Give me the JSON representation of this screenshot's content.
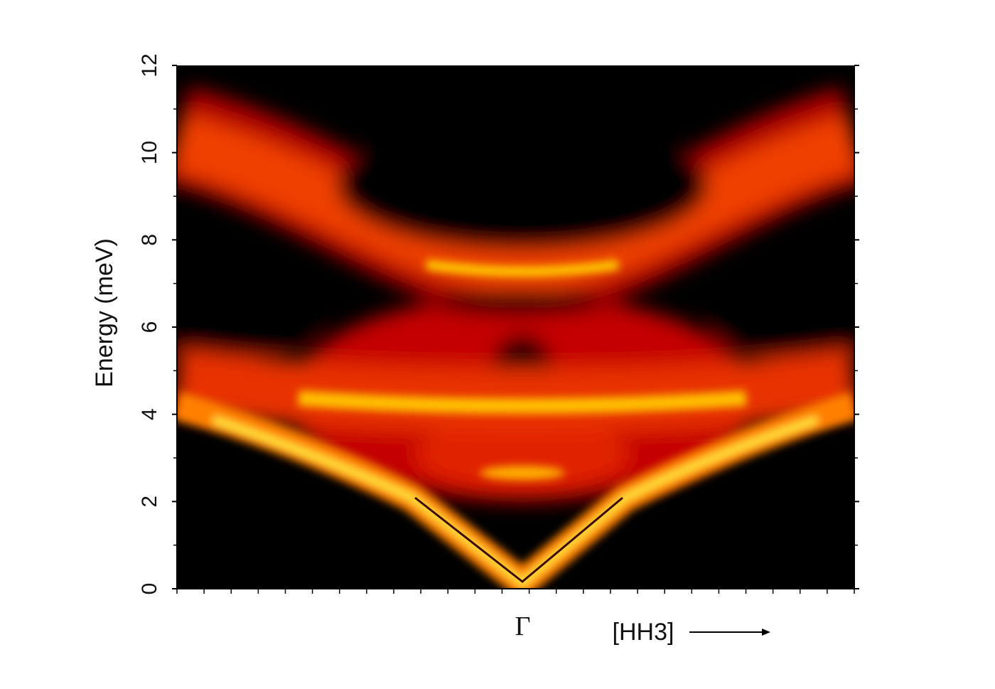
{
  "chart_data": {
    "type": "heatmap",
    "ylabel": "Energy (meV)",
    "xlabel": "[HH3]",
    "categories": [
      "Γ"
    ],
    "ylim": [
      0,
      12
    ],
    "yticks": [
      0,
      2,
      4,
      6,
      8,
      10,
      12
    ]
  }
}
